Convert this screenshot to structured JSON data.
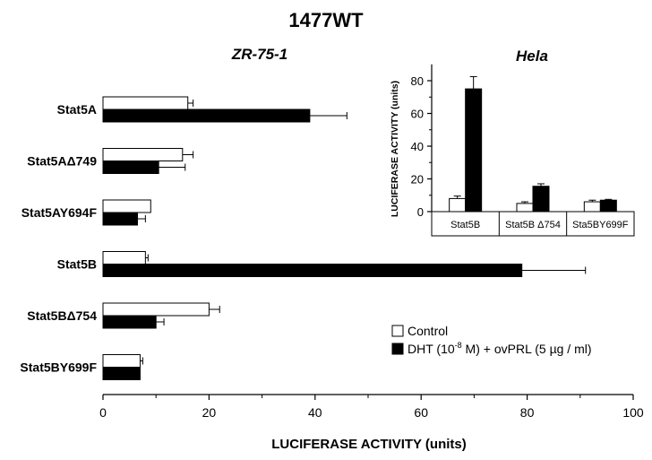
{
  "figure_title": "1477WT",
  "chart_data": [
    {
      "type": "bar",
      "orientation": "horizontal",
      "title": "ZR-75-1",
      "xlabel": "LUCIFERASE ACTIVITY (units)",
      "ylabel": "",
      "xlim": [
        0,
        100
      ],
      "x_ticks": [
        "0",
        "20",
        "40",
        "60",
        "80",
        "100"
      ],
      "grid": false,
      "legend_position": "bottom-right",
      "categories": [
        "Stat5A",
        "Stat5AΔ749",
        "Stat5AY694F",
        "Stat5B",
        "Stat5BΔ754",
        "Stat5BY699F"
      ],
      "series": [
        {
          "name": "Control",
          "color": "#ffffff",
          "values": [
            16,
            15,
            9,
            8,
            20,
            7
          ],
          "errors": [
            1.0,
            2.0,
            0,
            0.5,
            2.0,
            0.5
          ]
        },
        {
          "name": "DHT (10-8 M) + ovPRL (5 µg / ml)",
          "color": "#000000",
          "values": [
            39,
            10.5,
            6.5,
            79,
            10,
            7
          ],
          "errors": [
            7,
            5,
            1.5,
            12,
            1.5,
            0
          ]
        }
      ]
    },
    {
      "type": "bar",
      "title": "Hela",
      "xlabel": "",
      "ylabel": "LUCIFERASE ACTIVITY (units)",
      "ylim": [
        0,
        90
      ],
      "y_ticks": [
        "0",
        "20",
        "40",
        "60",
        "80"
      ],
      "grid": false,
      "categories": [
        "Stat5B",
        "Stat5B Δ754",
        "Sta5BY699F"
      ],
      "series": [
        {
          "name": "Control",
          "color": "#ffffff",
          "values": [
            8,
            5,
            6
          ],
          "errors": [
            1.5,
            1,
            1
          ]
        },
        {
          "name": "DHT (10-8 M) + ovPRL (5 µg / ml)",
          "color": "#000000",
          "values": [
            75,
            15.5,
            7
          ],
          "errors": [
            7.5,
            1.5,
            0.5
          ]
        }
      ]
    }
  ],
  "legend": {
    "control_label": "Control",
    "treated_prefix": "DHT (10",
    "treated_exponent": "-8",
    "treated_suffix": " M) + ovPRL (5 µg / ml)"
  }
}
